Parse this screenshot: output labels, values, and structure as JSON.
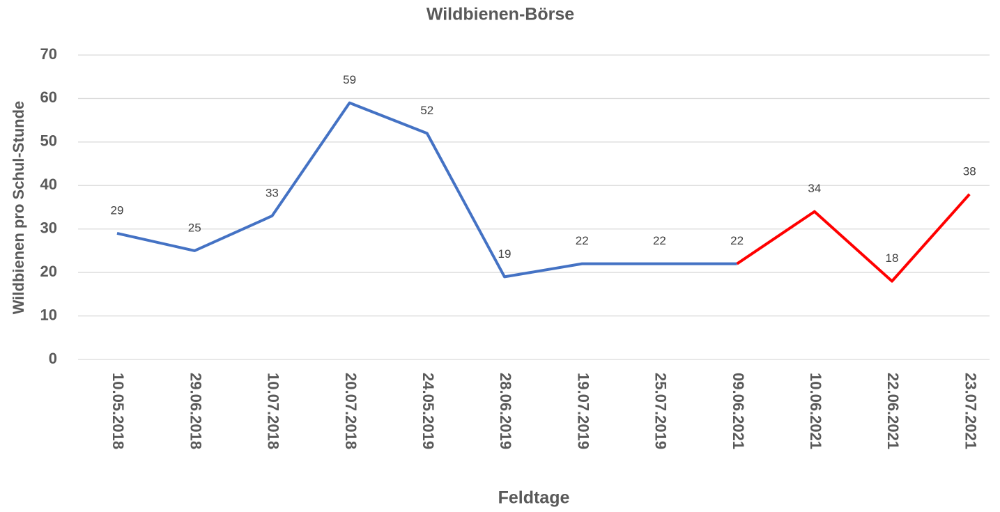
{
  "chart_data": {
    "type": "line",
    "title": "Wildbienen-Börse",
    "x_label": "Feldtage",
    "y_label": "Wildbienen pro Schul-Stunde",
    "categories": [
      "10.05.2018",
      "29.06.2018",
      "10.07.2018",
      "20.07.2018",
      "24.05.2019",
      "28.06.2019",
      "19.07.2019",
      "25.07.2019",
      "09.06.2021",
      "10.06.2021",
      "22.06.2021",
      "23.07.2021"
    ],
    "series": [
      {
        "color": "#4472c4",
        "values": [
          29,
          25,
          33,
          59,
          52,
          19,
          22,
          22,
          22,
          null,
          null,
          null
        ]
      },
      {
        "color": "#ff0000",
        "values": [
          null,
          null,
          null,
          null,
          null,
          null,
          null,
          null,
          22,
          34,
          18,
          38
        ]
      }
    ],
    "ylim": [
      0,
      70
    ],
    "yticks": [
      0,
      10,
      20,
      30,
      40,
      50,
      60,
      70
    ],
    "grid": true
  }
}
